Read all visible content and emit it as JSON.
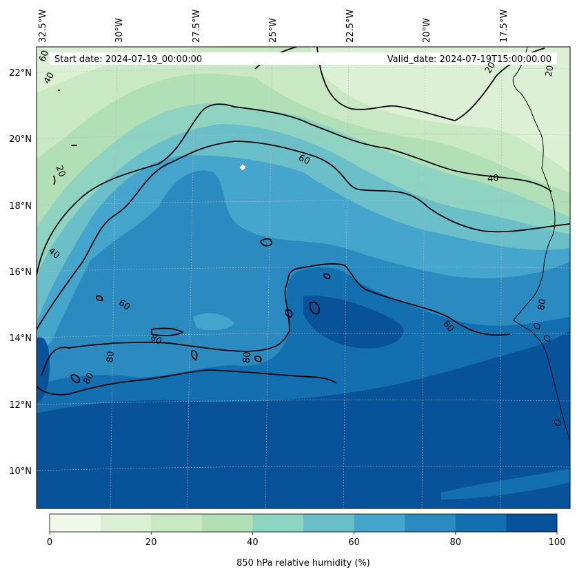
{
  "colors": {
    "levels": [
      "#f1f9ea",
      "#dcf0d6",
      "#c9e9c2",
      "#b1dfb6",
      "#8fd3c2",
      "#6abfc9",
      "#45a5cd",
      "#2b8bc0",
      "#146fb0",
      "#08529a"
    ],
    "contour": "#000000",
    "coast": "#000000",
    "grid": "#b8b8b8",
    "marker": "#ffffff"
  },
  "header": {
    "start_date": "Start date: 2024-07-19_00:00:00",
    "valid_date": "Valid_date: 2024-07-19T15:00:00.00"
  },
  "axes": {
    "lon_labels": [
      "32.5°W",
      "30°W",
      "27.5°W",
      "25°W",
      "22.5°W",
      "20°W",
      "17.5°W"
    ],
    "lat_labels": [
      "22°N",
      "20°N",
      "18°N",
      "16°N",
      "14°N",
      "12°N",
      "10°N"
    ]
  },
  "contour_labels": [
    {
      "text": "60"
    },
    {
      "text": "40"
    },
    {
      "text": "60"
    },
    {
      "text": "40"
    },
    {
      "text": "20"
    },
    {
      "text": "20"
    },
    {
      "text": "20"
    },
    {
      "text": "40"
    },
    {
      "text": "60"
    },
    {
      "text": "80"
    },
    {
      "text": "80"
    },
    {
      "text": "80"
    },
    {
      "text": "80"
    },
    {
      "text": "80"
    },
    {
      "text": "80"
    }
  ],
  "colorbar": {
    "label": "850 hPa relative humidity (%)",
    "ticks": [
      "0",
      "20",
      "40",
      "60",
      "80",
      "100"
    ],
    "min": 0,
    "max": 100,
    "step": 10
  }
}
